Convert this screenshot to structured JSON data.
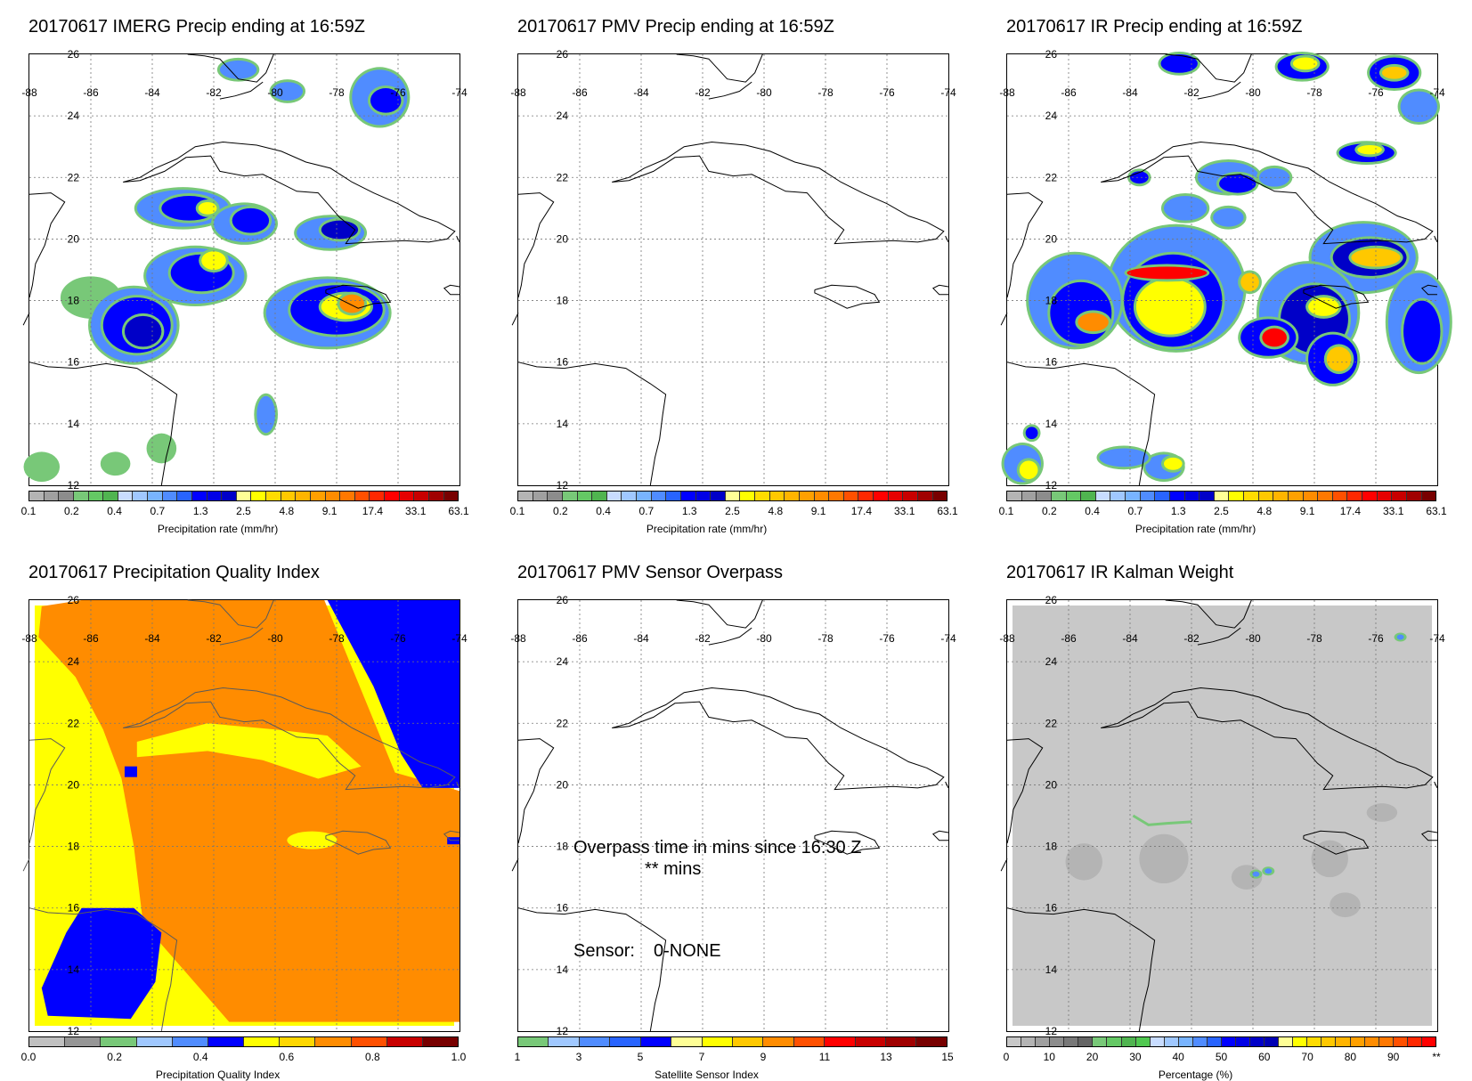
{
  "panels": [
    {
      "id": "imerg",
      "title": "20170617 IMERG Precip ending at 16:59Z",
      "type": "precip",
      "colorbar": {
        "title": "Precipitation rate (mm/hr)",
        "ticks": [
          "0.1",
          "0.2",
          "0.4",
          "0.7",
          "1.3",
          "2.5",
          "4.8",
          "9.1",
          "17.4",
          "33.1",
          "63.1"
        ],
        "colors": [
          "#b4b4b4",
          "#a0a0a0",
          "#8c8c8c",
          "#78c878",
          "#64c864",
          "#50b450",
          "#c8dcff",
          "#a0c8ff",
          "#78b4ff",
          "#508cff",
          "#2864ff",
          "#0000ff",
          "#0000e6",
          "#0000c8",
          "#ffff96",
          "#ffff00",
          "#ffdc00",
          "#ffc800",
          "#ffb400",
          "#ffa000",
          "#ff8c00",
          "#ff7800",
          "#ff5000",
          "#ff2800",
          "#ff0000",
          "#e60000",
          "#c80000",
          "#a00000",
          "#780000"
        ]
      }
    },
    {
      "id": "pmv",
      "title": "20170617 PMV Precip ending at 16:59Z",
      "type": "precip",
      "colorbar": {
        "title": "Precipitation rate (mm/hr)",
        "ticks": [
          "0.1",
          "0.2",
          "0.4",
          "0.7",
          "1.3",
          "2.5",
          "4.8",
          "9.1",
          "17.4",
          "33.1",
          "63.1"
        ],
        "colors": [
          "#b4b4b4",
          "#a0a0a0",
          "#8c8c8c",
          "#78c878",
          "#64c864",
          "#50b450",
          "#c8dcff",
          "#a0c8ff",
          "#78b4ff",
          "#508cff",
          "#2864ff",
          "#0000ff",
          "#0000e6",
          "#0000c8",
          "#ffff96",
          "#ffff00",
          "#ffdc00",
          "#ffc800",
          "#ffb400",
          "#ffa000",
          "#ff8c00",
          "#ff7800",
          "#ff5000",
          "#ff2800",
          "#ff0000",
          "#e60000",
          "#c80000",
          "#a00000",
          "#780000"
        ]
      }
    },
    {
      "id": "ir",
      "title": "20170617 IR Precip ending at 16:59Z",
      "type": "precip",
      "colorbar": {
        "title": "Precipitation rate (mm/hr)",
        "ticks": [
          "0.1",
          "0.2",
          "0.4",
          "0.7",
          "1.3",
          "2.5",
          "4.8",
          "9.1",
          "17.4",
          "33.1",
          "63.1"
        ],
        "colors": [
          "#b4b4b4",
          "#a0a0a0",
          "#8c8c8c",
          "#78c878",
          "#64c864",
          "#50b450",
          "#c8dcff",
          "#a0c8ff",
          "#78b4ff",
          "#508cff",
          "#2864ff",
          "#0000ff",
          "#0000e6",
          "#0000c8",
          "#ffff96",
          "#ffff00",
          "#ffdc00",
          "#ffc800",
          "#ffb400",
          "#ffa000",
          "#ff8c00",
          "#ff7800",
          "#ff5000",
          "#ff2800",
          "#ff0000",
          "#e60000",
          "#c80000",
          "#a00000",
          "#780000"
        ]
      }
    },
    {
      "id": "pqi",
      "title": "20170617 Precipitation Quality Index",
      "type": "pqi",
      "colorbar": {
        "title": "Precipitation Quality Index",
        "ticks": [
          "0.0",
          "0.2",
          "0.4",
          "0.6",
          "0.8",
          "1.0"
        ],
        "colors": [
          "#c0c0c0",
          "#969696",
          "#78c878",
          "#a0c8ff",
          "#508cff",
          "#0000ff",
          "#ffff00",
          "#ffd700",
          "#ff8c00",
          "#ff5000",
          "#c80000",
          "#780000"
        ]
      }
    },
    {
      "id": "overpass",
      "title": "20170617 PMV Sensor Overpass",
      "type": "overpass",
      "overpass_text": "Overpass time in mins since 16:30 Z",
      "mins_text": "** mins",
      "sensor_label": "Sensor:",
      "sensor_value": "0-NONE",
      "colorbar": {
        "title": "Satellite Sensor Index",
        "ticks": [
          "1",
          "3",
          "5",
          "7",
          "9",
          "11",
          "13",
          "15"
        ],
        "colors": [
          "#78c878",
          "#a0c8ff",
          "#508cff",
          "#2864ff",
          "#0000ff",
          "#ffff96",
          "#ffff00",
          "#ffc800",
          "#ff8c00",
          "#ff5000",
          "#ff0000",
          "#c80000",
          "#a00000",
          "#780000"
        ]
      }
    },
    {
      "id": "kalman",
      "title": "20170617 IR Kalman Weight",
      "type": "kalman",
      "colorbar": {
        "title": "Percentage (%)",
        "ticks": [
          "0",
          "10",
          "20",
          "30",
          "40",
          "50",
          "60",
          "70",
          "80",
          "90",
          "**"
        ],
        "colors": [
          "#c8c8c8",
          "#b4b4b4",
          "#a0a0a0",
          "#8c8c8c",
          "#787878",
          "#646464",
          "#78c878",
          "#64c864",
          "#50b450",
          "#50c850",
          "#c8dcff",
          "#a0c8ff",
          "#78b4ff",
          "#508cff",
          "#2864ff",
          "#0000ff",
          "#0000e6",
          "#0000c8",
          "#0000b4",
          "#ffff96",
          "#ffff00",
          "#ffdc00",
          "#ffc800",
          "#ffb400",
          "#ffa000",
          "#ff8c00",
          "#ff7800",
          "#ff5000",
          "#ff2800",
          "#ff0000"
        ]
      }
    }
  ],
  "map": {
    "lon_labels": [
      "-88",
      "-86",
      "-84",
      "-82",
      "-80",
      "-78",
      "-76",
      "-74"
    ],
    "lat_labels": [
      "26",
      "24",
      "22",
      "20",
      "18",
      "16",
      "14",
      "12"
    ]
  }
}
